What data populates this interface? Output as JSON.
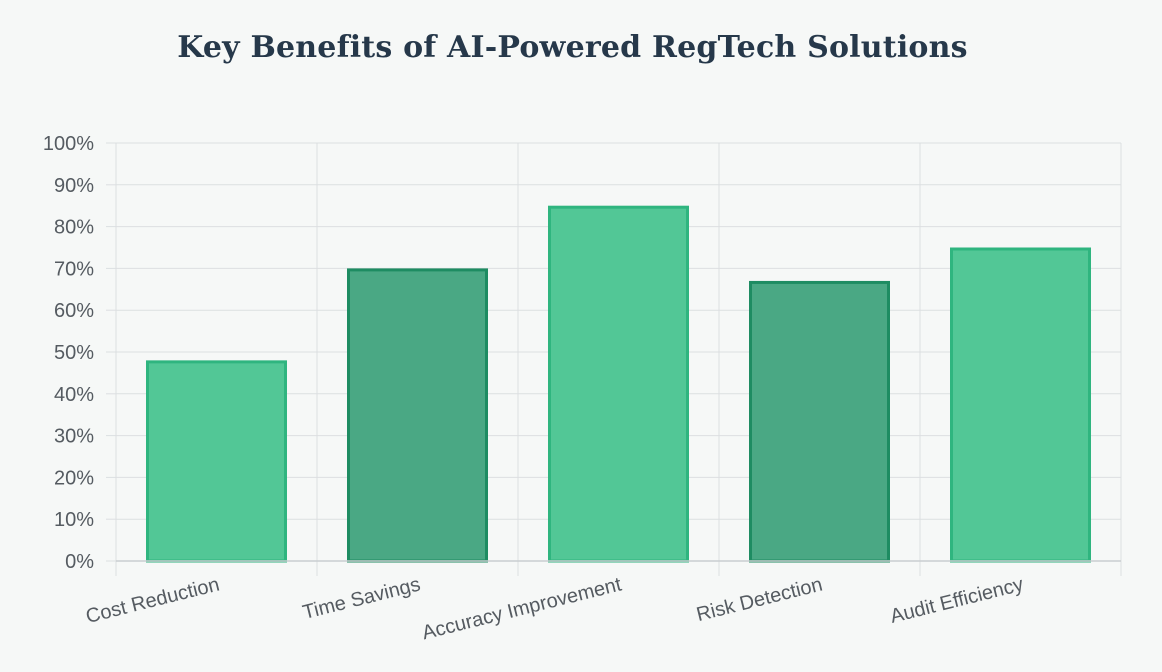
{
  "chart_data": {
    "type": "bar",
    "title": "Key Benefits of AI-Powered RegTech Solutions",
    "categories": [
      "Cost Reduction",
      "Time Savings",
      "Accuracy Improvement",
      "Risk Detection",
      "Audit Efficiency"
    ],
    "values": [
      48,
      70,
      85,
      67,
      75
    ],
    "unit": "%",
    "xlabel": "",
    "ylabel": "",
    "ylim": [
      0,
      100
    ],
    "yticks": [
      "0%",
      "10%",
      "20%",
      "30%",
      "40%",
      "50%",
      "60%",
      "70%",
      "80%",
      "90%",
      "100%"
    ],
    "grid": true,
    "legend": "none",
    "bar_colors": [
      "#52c796",
      "#4aa884",
      "#52c796",
      "#4aa884",
      "#52c796"
    ],
    "bar_border_colors": [
      "#2fb57f",
      "#1e8c62",
      "#2fb57f",
      "#1e8c62",
      "#2fb57f"
    ],
    "colors": {
      "background": "#f6f8f7",
      "grid": "#dcdfe1",
      "title": "#26384a",
      "tick_text": "#555b61"
    }
  }
}
